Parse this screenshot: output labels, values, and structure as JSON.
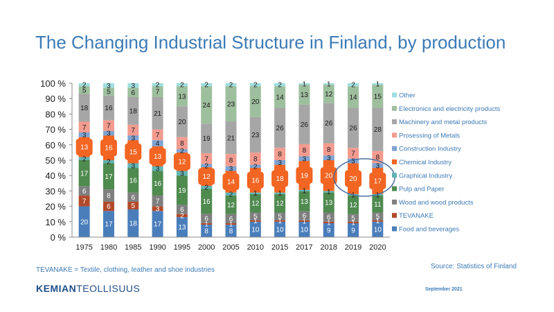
{
  "slide": {
    "title": "The Changing Industrial Structure in Finland, by production",
    "footnote": "TEVANAKE = Textile, clothing, leather and shoe industries",
    "source": "Source: Statistics of Finland",
    "logo_bold": "KEMIAN",
    "logo_regular": "TEOLLISUUS",
    "date": "September 2021"
  },
  "chart_data": {
    "type": "bar",
    "stacked": true,
    "percent_stacked": true,
    "ylim": [
      0,
      100
    ],
    "y_ticks": [
      "0 %",
      "10 %",
      "20 %",
      "30 %",
      "40 %",
      "50 %",
      "60 %",
      "70 %",
      "80 %",
      "90 %",
      "100 %"
    ],
    "grid": false,
    "legend_position": "right",
    "categories": [
      "1975",
      "1980",
      "1985",
      "1990",
      "1995",
      "2000",
      "2005",
      "2010",
      "2015",
      "2017",
      "2018",
      "2019",
      "2020"
    ],
    "series": [
      {
        "name": "Food and beverages",
        "color": "#4a7ebb",
        "label_color": "#ffffff",
        "values": [
          20,
          17,
          18,
          17,
          13,
          8,
          8,
          10,
          10,
          10,
          9,
          9,
          10
        ]
      },
      {
        "name": "TEVANAKE",
        "color": "#b24a2a",
        "label_color": "#ffffff",
        "values": [
          7,
          6,
          5,
          3,
          2,
          1,
          1,
          1,
          1,
          1,
          1,
          1,
          1
        ]
      },
      {
        "name": "Wood and wood products",
        "color": "#7f7f7f",
        "label_color": "#ffffff",
        "values": [
          6,
          8,
          6,
          7,
          6,
          6,
          6,
          5,
          5,
          6,
          6,
          5,
          5
        ]
      },
      {
        "name": "Pulp and Paper",
        "color": "#4f8a4f",
        "label_color": "#ffffff",
        "values": [
          17,
          17,
          16,
          16,
          19,
          16,
          12,
          12,
          12,
          13,
          13,
          12,
          11
        ]
      },
      {
        "name": "Graphical Industry",
        "color": "#62b3b3",
        "label_color": "#1a1a1a",
        "values": [
          2,
          2,
          3,
          3,
          3,
          2,
          2,
          1,
          1,
          1,
          1,
          1,
          1
        ]
      },
      {
        "name": "Chemical Industry",
        "color": "#f26522",
        "label_color": "#ffffff",
        "values": [
          13,
          16,
          15,
          13,
          12,
          12,
          14,
          16,
          18,
          19,
          20,
          20,
          17
        ]
      },
      {
        "name": "Construction Industry",
        "color": "#7ea3d3",
        "label_color": "#1a1a1a",
        "values": [
          3,
          3,
          3,
          4,
          2,
          2,
          3,
          2,
          3,
          3,
          3,
          3,
          3
        ]
      },
      {
        "name": "Prosessing of Metals",
        "color": "#f29b8f",
        "label_color": "#1a1a1a",
        "values": [
          7,
          7,
          7,
          7,
          8,
          7,
          8,
          8,
          8,
          8,
          8,
          7,
          8
        ]
      },
      {
        "name": "Machinery and metal products",
        "color": "#a6a6a6",
        "label_color": "#1a1a1a",
        "values": [
          18,
          16,
          18,
          21,
          20,
          19,
          21,
          23,
          26,
          26,
          26,
          26,
          28
        ]
      },
      {
        "name": "Electronics and electricity products",
        "color": "#9ebf9e",
        "label_color": "#1a1a1a",
        "values": [
          5,
          5,
          6,
          7,
          13,
          24,
          23,
          20,
          14,
          13,
          12,
          14,
          15
        ]
      },
      {
        "name": "Other",
        "color": "#9fdede",
        "label_color": "#1a1a1a",
        "values": [
          2,
          3,
          3,
          2,
          2,
          2,
          2,
          2,
          2,
          1,
          1,
          2,
          1
        ]
      }
    ],
    "highlight": {
      "category": "2019",
      "shape": "ellipse",
      "color": "#4a6fa0"
    }
  }
}
